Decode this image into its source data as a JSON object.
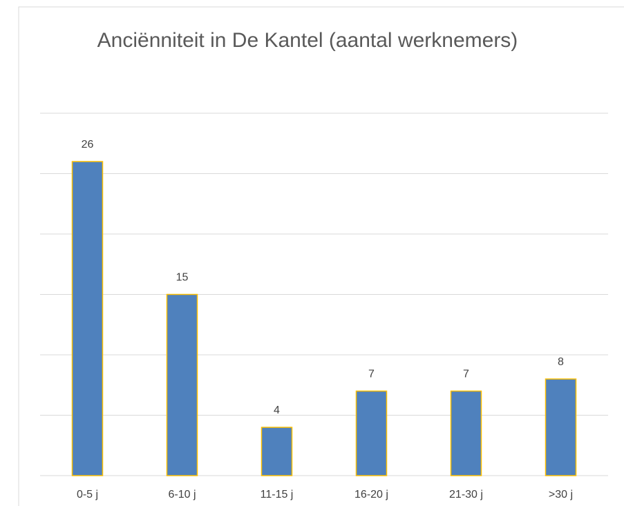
{
  "chart_data": {
    "type": "bar",
    "title": "Anciënniteit in De Kantel  (aantal werknemers)",
    "categories": [
      "0-5 j",
      "6-10 j",
      "11-15 j",
      "16-20 j",
      "21-30 j",
      ">30 j"
    ],
    "values": [
      26,
      15,
      4,
      7,
      7,
      8
    ],
    "color": "#4f81bd",
    "edge_color": "#ffc000",
    "ylim": [
      0,
      30
    ],
    "yticks": [
      0,
      5,
      10,
      15,
      20,
      25,
      30
    ],
    "grid": true
  }
}
